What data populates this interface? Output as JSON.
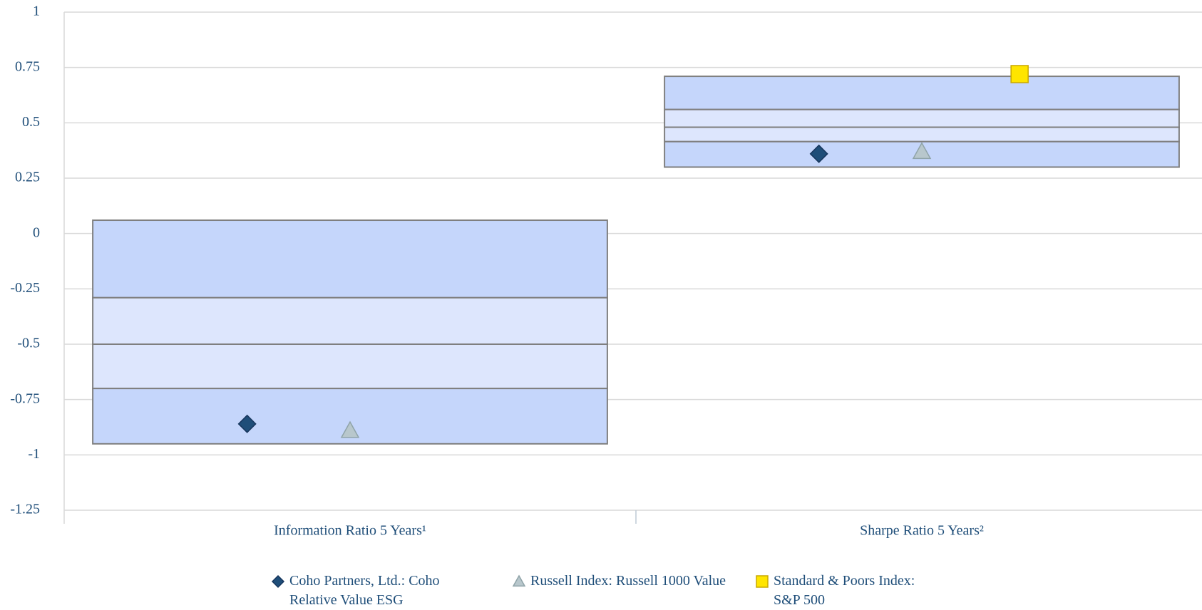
{
  "chart_data": {
    "type": "floating-box",
    "categories": [
      "Information Ratio 5 Years¹",
      "Sharpe Ratio 5 Years²"
    ],
    "ranges": [
      [
        0.06,
        -0.29,
        -0.5,
        -0.7,
        -0.95
      ],
      [
        0.71,
        0.56,
        0.48,
        0.415,
        0.3
      ]
    ],
    "range_colors": [
      "#c5d6fb",
      "#dde6fd",
      "#dde6fd",
      "#c5d6fb"
    ],
    "series": [
      {
        "name": "Coho Partners, Ltd.: Coho Relative Value ESG",
        "color": "#1f4e79",
        "marker": "diamond",
        "values": [
          -0.86,
          0.36
        ]
      },
      {
        "name": "Russell Index: Russell 1000 Value",
        "color": "#b8c7cc",
        "marker": "triangle",
        "values": [
          -0.89,
          0.37
        ]
      },
      {
        "name": "Standard & Poors Index: S&P 500",
        "color": "#ffe500",
        "marker": "square",
        "values": [
          null,
          0.72
        ]
      }
    ],
    "ylim": [
      -1.25,
      1
    ],
    "yticks": [
      1,
      0.75,
      0.5,
      0.25,
      0,
      -0.25,
      -0.5,
      -0.75,
      -1,
      -1.25
    ],
    "grid": true
  }
}
